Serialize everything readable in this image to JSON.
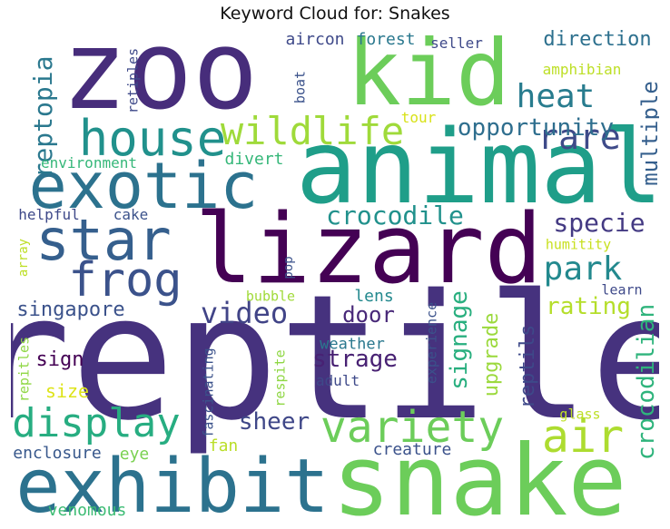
{
  "chart_data": {
    "type": "wordcloud",
    "title": "Keyword Cloud for: Snakes",
    "words": [
      {
        "text": "reptile",
        "weight": 100,
        "color": "#46327e",
        "orientation": "horizontal"
      },
      {
        "text": "snake",
        "weight": 62,
        "color": "#6ccd5a",
        "orientation": "horizontal"
      },
      {
        "text": "animal",
        "weight": 60,
        "color": "#1f9e89",
        "orientation": "horizontal"
      },
      {
        "text": "lizard",
        "weight": 58,
        "color": "#440154",
        "orientation": "horizontal"
      },
      {
        "text": "zoo",
        "weight": 55,
        "color": "#472d7b",
        "orientation": "horizontal"
      },
      {
        "text": "kid",
        "weight": 48,
        "color": "#6ccd5a",
        "orientation": "horizontal"
      },
      {
        "text": "exhibit",
        "weight": 45,
        "color": "#2c728e",
        "orientation": "horizontal"
      },
      {
        "text": "exotic",
        "weight": 40,
        "color": "#2c728e",
        "orientation": "horizontal"
      },
      {
        "text": "star",
        "weight": 38,
        "color": "#355f8d",
        "orientation": "horizontal"
      },
      {
        "text": "variety",
        "weight": 33,
        "color": "#6ccd5a",
        "orientation": "horizontal"
      },
      {
        "text": "house",
        "weight": 30,
        "color": "#21918c",
        "orientation": "horizontal"
      },
      {
        "text": "frog",
        "weight": 30,
        "color": "#3b528b",
        "orientation": "horizontal"
      },
      {
        "text": "display",
        "weight": 30,
        "color": "#27ad81",
        "orientation": "horizontal"
      },
      {
        "text": "air",
        "weight": 30,
        "color": "#addc30",
        "orientation": "horizontal"
      },
      {
        "text": "wildlife",
        "weight": 26,
        "color": "#9fda3a",
        "orientation": "horizontal"
      },
      {
        "text": "heat",
        "weight": 24,
        "color": "#287c8e",
        "orientation": "horizontal"
      },
      {
        "text": "rare",
        "weight": 23,
        "color": "#3e4a89",
        "orientation": "horizontal"
      },
      {
        "text": "park",
        "weight": 21,
        "color": "#23898e",
        "orientation": "horizontal"
      },
      {
        "text": "reptopia",
        "weight": 20,
        "color": "#2a788e",
        "orientation": "vertical"
      },
      {
        "text": "crocodilian",
        "weight": 20,
        "color": "#2fb47c",
        "orientation": "vertical"
      },
      {
        "text": "video",
        "weight": 19,
        "color": "#414487",
        "orientation": "horizontal"
      },
      {
        "text": "crocodile",
        "weight": 17,
        "color": "#21918c",
        "orientation": "horizontal"
      },
      {
        "text": "specie",
        "weight": 17,
        "color": "#443a83",
        "orientation": "horizontal"
      },
      {
        "text": "opportunity",
        "weight": 16,
        "color": "#2e6e8e",
        "orientation": "horizontal"
      },
      {
        "text": "multiple",
        "weight": 16,
        "color": "#355f8d",
        "orientation": "vertical"
      },
      {
        "text": "signage",
        "weight": 16,
        "color": "#29af7f",
        "orientation": "vertical"
      },
      {
        "text": "rating",
        "weight": 16,
        "color": "#b5de2b",
        "orientation": "horizontal"
      },
      {
        "text": "strage",
        "weight": 15,
        "color": "#482173",
        "orientation": "horizontal"
      },
      {
        "text": "sheer",
        "weight": 15,
        "color": "#3f4788",
        "orientation": "horizontal"
      },
      {
        "text": "direction",
        "weight": 14,
        "color": "#2d708e",
        "orientation": "horizontal"
      },
      {
        "text": "door",
        "weight": 14,
        "color": "#482878",
        "orientation": "horizontal"
      },
      {
        "text": "singapore",
        "weight": 13,
        "color": "#3b528b",
        "orientation": "horizontal"
      },
      {
        "text": "sign",
        "weight": 13,
        "color": "#440154",
        "orientation": "horizontal"
      },
      {
        "text": "upgrade",
        "weight": 13,
        "color": "#9bd93c",
        "orientation": "vertical"
      },
      {
        "text": "reptils",
        "weight": 13,
        "color": "#3e4989",
        "orientation": "vertical"
      },
      {
        "text": "enclosure",
        "weight": 12,
        "color": "#38588c",
        "orientation": "horizontal"
      },
      {
        "text": "creature",
        "weight": 12,
        "color": "#3b528b",
        "orientation": "horizontal"
      },
      {
        "text": "lens",
        "weight": 12,
        "color": "#23898e",
        "orientation": "horizontal"
      },
      {
        "text": "fan",
        "weight": 12,
        "color": "#bade28",
        "orientation": "horizontal"
      },
      {
        "text": "size",
        "weight": 12,
        "color": "#dde318",
        "orientation": "horizontal"
      },
      {
        "text": "eye",
        "weight": 11,
        "color": "#7ad151",
        "orientation": "horizontal"
      },
      {
        "text": "venomous",
        "weight": 11,
        "color": "#3dbc74",
        "orientation": "horizontal"
      },
      {
        "text": "aircon",
        "weight": 11,
        "color": "#3e4989",
        "orientation": "horizontal"
      },
      {
        "text": "forest",
        "weight": 11,
        "color": "#2a788e",
        "orientation": "horizontal"
      },
      {
        "text": "seller",
        "weight": 10,
        "color": "#3e4989",
        "orientation": "horizontal"
      },
      {
        "text": "amphibian",
        "weight": 10,
        "color": "#bddf26",
        "orientation": "horizontal"
      },
      {
        "text": "tour",
        "weight": 10,
        "color": "#d8e219",
        "orientation": "horizontal"
      },
      {
        "text": "divert",
        "weight": 11,
        "color": "#35b779",
        "orientation": "horizontal"
      },
      {
        "text": "environment",
        "weight": 10,
        "color": "#35b779",
        "orientation": "horizontal"
      },
      {
        "text": "helpful",
        "weight": 10,
        "color": "#3e4989",
        "orientation": "horizontal"
      },
      {
        "text": "cake",
        "weight": 10,
        "color": "#3b528b",
        "orientation": "horizontal"
      },
      {
        "text": "pop",
        "weight": 10,
        "color": "#3b528b",
        "orientation": "vertical"
      },
      {
        "text": "bubble",
        "weight": 10,
        "color": "#a0da39",
        "orientation": "horizontal"
      },
      {
        "text": "weather",
        "weight": 11,
        "color": "#2a788e",
        "orientation": "horizontal"
      },
      {
        "text": "adult",
        "weight": 11,
        "color": "#3e4989",
        "orientation": "horizontal"
      },
      {
        "text": "experience",
        "weight": 11,
        "color": "#3b528b",
        "orientation": "vertical"
      },
      {
        "text": "respite",
        "weight": 10,
        "color": "#8fd744",
        "orientation": "vertical"
      },
      {
        "text": "fascinating",
        "weight": 10,
        "color": "#3b528b",
        "orientation": "vertical"
      },
      {
        "text": "repitles",
        "weight": 10,
        "color": "#8fd744",
        "orientation": "vertical"
      },
      {
        "text": "array",
        "weight": 10,
        "color": "#bddf26",
        "orientation": "vertical"
      },
      {
        "text": "retiples",
        "weight": 10,
        "color": "#3e4989",
        "orientation": "vertical"
      },
      {
        "text": "boat",
        "weight": 10,
        "color": "#3b528b",
        "orientation": "vertical"
      },
      {
        "text": "humitity",
        "weight": 10,
        "color": "#c8e020",
        "orientation": "horizontal"
      },
      {
        "text": "learn",
        "weight": 10,
        "color": "#3e4989",
        "orientation": "horizontal"
      },
      {
        "text": "glass",
        "weight": 10,
        "color": "#bddf26",
        "orientation": "horizontal"
      }
    ]
  }
}
